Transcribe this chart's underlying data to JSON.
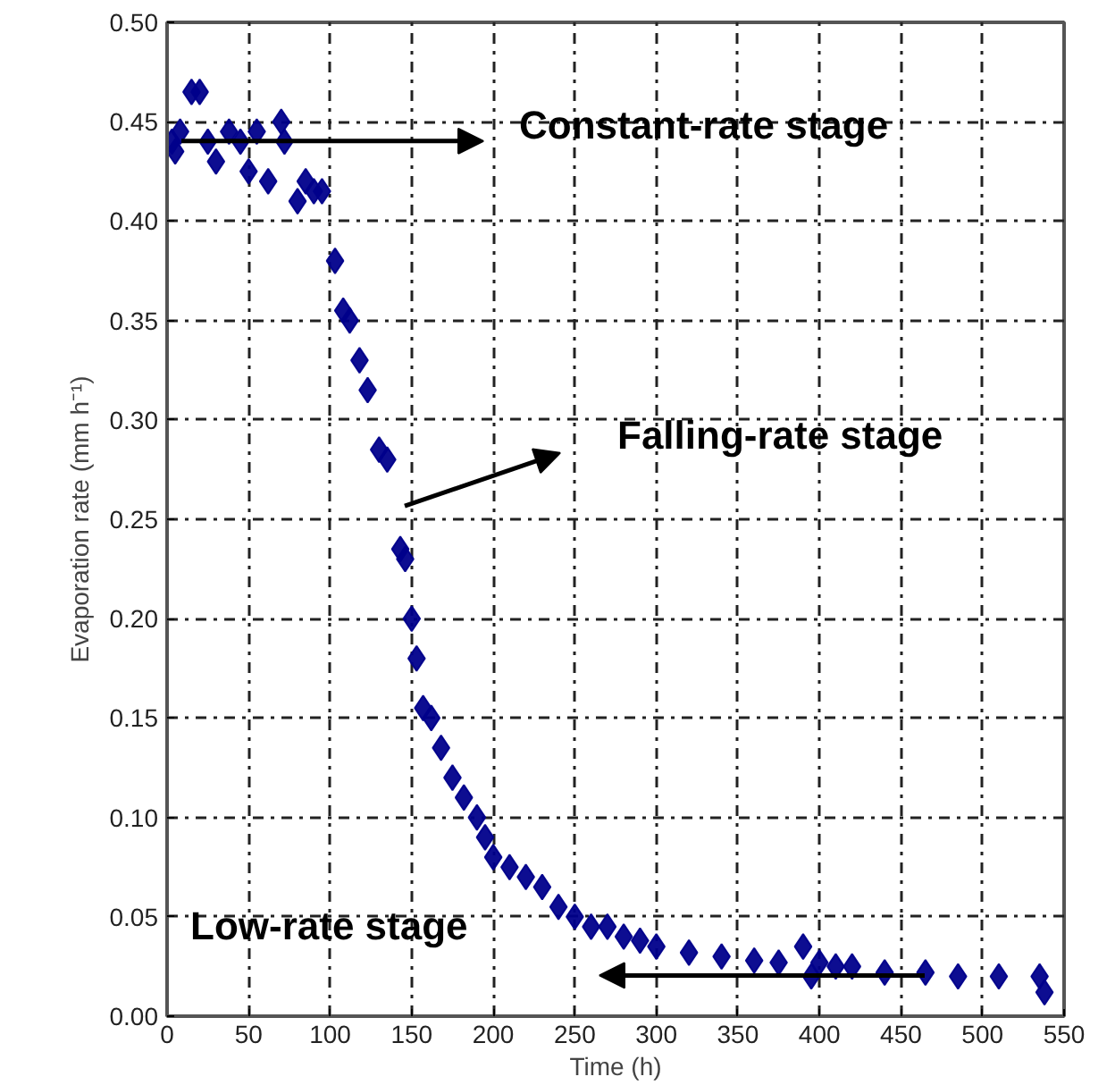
{
  "chart_data": {
    "type": "scatter",
    "xlabel": "Time (h)",
    "ylabel": "Evaporation rate (mm h⁻¹)",
    "x": [
      3,
      5,
      8,
      15,
      20,
      25,
      30,
      38,
      45,
      50,
      55,
      62,
      70,
      72,
      80,
      85,
      90,
      95,
      103,
      108,
      112,
      118,
      123,
      130,
      135,
      143,
      146,
      150,
      153,
      157,
      162,
      168,
      175,
      182,
      190,
      195,
      200,
      210,
      220,
      230,
      240,
      250,
      260,
      270,
      280,
      290,
      300,
      320,
      340,
      360,
      375,
      390,
      395,
      400,
      410,
      420,
      440,
      465,
      485,
      510,
      535,
      538
    ],
    "series": [
      {
        "color": "#00008b",
        "values": [
          0.44,
          0.435,
          0.445,
          0.465,
          0.465,
          0.44,
          0.43,
          0.445,
          0.44,
          0.425,
          0.445,
          0.42,
          0.45,
          0.44,
          0.41,
          0.42,
          0.415,
          0.415,
          0.38,
          0.355,
          0.35,
          0.33,
          0.315,
          0.285,
          0.28,
          0.235,
          0.23,
          0.2,
          0.18,
          0.155,
          0.15,
          0.135,
          0.12,
          0.11,
          0.1,
          0.09,
          0.08,
          0.075,
          0.07,
          0.065,
          0.055,
          0.05,
          0.045,
          0.045,
          0.04,
          0.038,
          0.035,
          0.032,
          0.03,
          0.028,
          0.027,
          0.035,
          0.02,
          0.027,
          0.025,
          0.025,
          0.022,
          0.022,
          0.02,
          0.02,
          0.02,
          0.012
        ]
      }
    ],
    "xlim": [
      0,
      550
    ],
    "xticks": [
      0,
      50,
      100,
      150,
      200,
      250,
      300,
      350,
      400,
      450,
      500,
      550
    ],
    "ylim": [
      0,
      0.5
    ],
    "yticks": [
      {
        "value": 0,
        "label": "0.00"
      },
      {
        "value": 0.05,
        "label": "0.05"
      },
      {
        "value": 0.1,
        "label": "0.10"
      },
      {
        "value": 0.15,
        "label": "0.15"
      },
      {
        "value": 0.2,
        "label": "0.20"
      },
      {
        "value": 0.25,
        "label": "0.25"
      },
      {
        "value": 0.3,
        "label": "0.30"
      },
      {
        "value": 0.35,
        "label": "0.35"
      },
      {
        "value": 0.4,
        "label": "0.40"
      },
      {
        "value": 0.45,
        "label": "0.45"
      },
      {
        "value": 0.5,
        "label": "0.50"
      }
    ],
    "annotations": [
      "Constant-rate stage",
      "Falling-rate stage",
      "Low-rate stage"
    ],
    "grid": true,
    "marker": "diamond"
  }
}
